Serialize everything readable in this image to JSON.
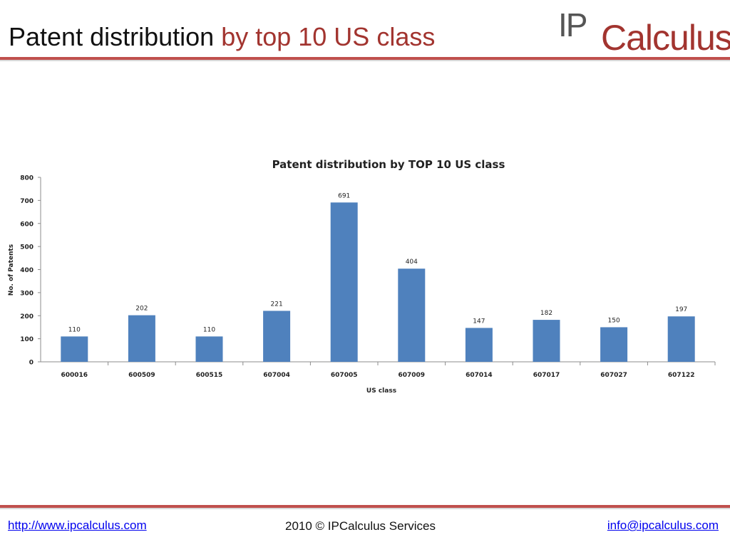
{
  "slide": {
    "title_main": "Patent distribution",
    "title_accent": " by top 10 US class",
    "logo_ip": "IP",
    "logo_rest": "Calculus"
  },
  "footer": {
    "website": "http://www.ipcalculus.com",
    "copyright": "2010 © IPCalculus Services",
    "email": "info@ipcalculus.com"
  },
  "colors": {
    "bar": "#4f81bd",
    "accent": "#a2342f",
    "rule": "#c0504d"
  },
  "chart_data": {
    "type": "bar",
    "title": "Patent distribution  by TOP 10 US class",
    "xlabel": "US class",
    "ylabel": "No. of Patents",
    "categories": [
      "600016",
      "600509",
      "600515",
      "607004",
      "607005",
      "607009",
      "607014",
      "607017",
      "607027",
      "607122"
    ],
    "values": [
      110,
      202,
      110,
      221,
      691,
      404,
      147,
      182,
      150,
      197
    ],
    "ylim": [
      0,
      800
    ],
    "yticks": [
      0,
      100,
      200,
      300,
      400,
      500,
      600,
      700,
      800
    ],
    "grid": false,
    "legend": "none",
    "data_labels": true
  }
}
